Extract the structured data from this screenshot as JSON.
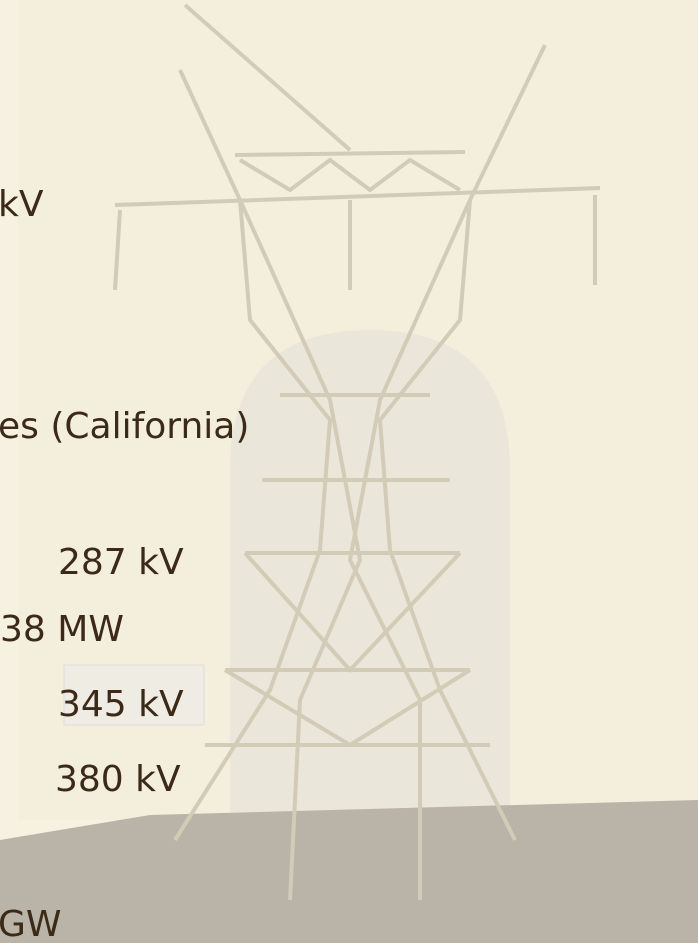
{
  "text_lines": [
    "kV",
    "es (California)",
    "287 kV",
    "38 MW",
    "345 kV",
    "380 kV",
    "GW"
  ]
}
